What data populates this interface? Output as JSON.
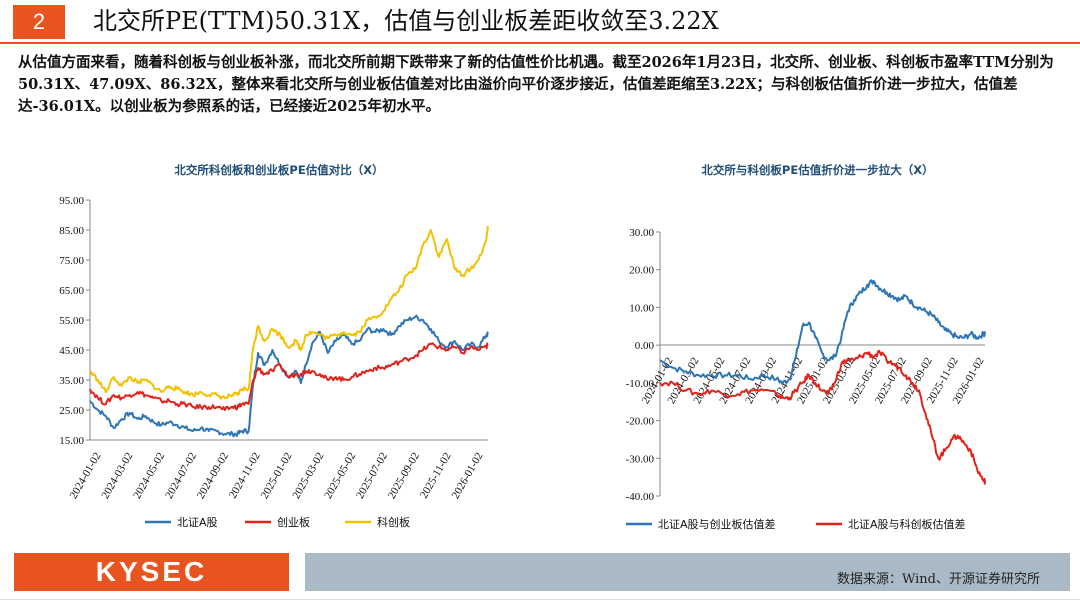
{
  "header": {
    "number": "2",
    "title": "北交所PE(TTM)50.31X，估值与创业板差距收敛至3.22X"
  },
  "summary": "从估值方面来看，随着科创板与创业板补涨，而北交所前期下跌带来了新的估值性价比机遇。截至2026年1月23日，北交所、创业板、科创板市盈率TTM分别为50.31X、47.09X、86.32X，整体来看北交所与创业板估值差对比由溢价向平价逐步接近，估值差距缩至3.22X；与科创板估值折价进一步拉大，估值差达-36.01X。以创业板为参照系的话，已经接近2025年初水平。",
  "footer": {
    "brand": "KYSEC",
    "source": "数据来源：Wind、开源证券研究所"
  },
  "colors": {
    "blue": "#2e75b6",
    "red": "#e0241c",
    "yellow": "#f2c100",
    "accent": "#e8541f"
  },
  "chart_data": [
    {
      "type": "line",
      "title": "北交所科创板和创业板PE估值对比（X）",
      "y_ticks": [
        "95.00",
        "85.00",
        "75.00",
        "65.00",
        "55.00",
        "45.00",
        "35.00",
        "25.00",
        "15.00"
      ],
      "ylim": [
        15,
        95
      ],
      "x_ticks": [
        "2024-01-02",
        "2024-03-02",
        "2024-05-02",
        "2024-07-02",
        "2024-09-02",
        "2024-11-02",
        "2025-01-02",
        "2025-03-02",
        "2025-05-02",
        "2025-07-02",
        "2025-09-02",
        "2025-11-02",
        "2026-01-02"
      ],
      "x_range": [
        0,
        25.1
      ],
      "series": [
        {
          "name": "北证A股",
          "color": "#2e75b6",
          "x": [
            0,
            0.5,
            1,
            1.5,
            2,
            2.5,
            3,
            3.5,
            4,
            4.5,
            5,
            5.5,
            6,
            6.5,
            7,
            7.5,
            8,
            8.5,
            9,
            9.3,
            9.6,
            10,
            10.3,
            10.6,
            11,
            11.5,
            12,
            12.5,
            13,
            13.3,
            13.6,
            14,
            14.5,
            15,
            15.5,
            16,
            16.5,
            17,
            17.5,
            18,
            18.5,
            19,
            19.5,
            20,
            20.5,
            21,
            21.5,
            22,
            22.5,
            23,
            23.5,
            24,
            24.5,
            25,
            25.1
          ],
          "y": [
            28,
            25,
            23,
            19,
            22,
            24,
            22,
            23,
            21,
            20,
            21,
            20,
            19,
            18,
            19,
            18,
            18,
            17,
            17,
            17,
            18,
            18,
            34,
            44,
            40,
            45,
            40,
            36,
            38,
            34,
            40,
            47,
            51,
            44,
            48,
            50,
            47,
            48,
            52,
            51,
            52,
            50,
            53,
            55,
            56,
            55,
            52,
            48,
            46,
            48,
            45,
            47,
            46,
            50,
            50.3
          ]
        },
        {
          "name": "创业板",
          "color": "#e0241c",
          "x": [
            0,
            0.5,
            1,
            1.5,
            2,
            2.5,
            3,
            3.5,
            4,
            4.5,
            5,
            5.5,
            6,
            6.5,
            7,
            7.5,
            8,
            8.5,
            9,
            9.3,
            9.6,
            10,
            10.3,
            10.6,
            11,
            11.5,
            12,
            12.5,
            13,
            13.3,
            13.6,
            14,
            14.5,
            15,
            15.5,
            16,
            16.5,
            17,
            17.5,
            18,
            18.5,
            19,
            19.5,
            20,
            20.5,
            21,
            21.5,
            22,
            22.5,
            23,
            23.5,
            24,
            24.5,
            25,
            25.1
          ],
          "y": [
            32,
            29,
            27,
            30,
            29,
            30,
            31,
            30,
            29,
            28,
            28,
            27,
            27,
            26,
            26,
            26,
            26,
            25,
            26,
            26,
            27,
            27,
            35,
            39,
            37,
            38,
            40,
            36,
            37,
            37,
            38,
            38,
            37,
            35,
            36,
            35,
            36,
            37,
            38,
            39,
            39,
            40,
            41,
            42,
            43,
            45,
            47,
            46,
            45,
            46,
            44,
            46,
            45,
            46,
            47.1
          ]
        },
        {
          "name": "科创板",
          "color": "#f2c100",
          "x": [
            0,
            0.5,
            1,
            1.5,
            2,
            2.5,
            3,
            3.5,
            4,
            4.5,
            5,
            5.5,
            6,
            6.5,
            7,
            7.5,
            8,
            8.5,
            9,
            9.3,
            9.6,
            10,
            10.3,
            10.6,
            11,
            11.5,
            12,
            12.5,
            13,
            13.3,
            13.6,
            14,
            14.5,
            15,
            15.5,
            16,
            16.5,
            17,
            17.5,
            18,
            18.5,
            19,
            19.5,
            20,
            20.5,
            21,
            21.5,
            22,
            22.5,
            23,
            23.5,
            24,
            24.5,
            25,
            25.1
          ],
          "y": [
            38,
            35,
            31,
            36,
            33,
            36,
            34,
            35,
            33,
            31,
            33,
            32,
            31,
            30,
            31,
            30,
            30,
            29,
            30,
            30,
            32,
            32,
            46,
            53,
            48,
            52,
            50,
            46,
            48,
            45,
            50,
            51,
            50,
            49,
            50,
            51,
            50,
            51,
            55,
            56,
            58,
            62,
            65,
            70,
            72,
            80,
            85,
            76,
            82,
            72,
            70,
            72,
            75,
            82,
            86.3
          ]
        }
      ]
    },
    {
      "type": "line",
      "title": "北交所与科创板PE估值折价进一步拉大（X）",
      "y_ticks": [
        "30.00",
        "20.00",
        "10.00",
        "0.00",
        "-10.00",
        "-20.00",
        "-30.00",
        "-40.00"
      ],
      "ylim": [
        -40,
        30
      ],
      "x_ticks": [
        "2024-01-02",
        "2024-03-02",
        "2024-05-02",
        "2024-07-02",
        "2024-09-02",
        "2024-11-02",
        "2025-01-02",
        "2025-03-02",
        "2025-05-02",
        "2025-07-02",
        "2025-09-02",
        "2025-11-02",
        "2026-01-02"
      ],
      "x_range": [
        0,
        25.1
      ],
      "series": [
        {
          "name": "北证A股与创业板估值差",
          "color": "#2e75b6",
          "x": [
            0,
            1,
            2,
            3,
            4,
            5,
            6,
            7,
            8,
            9,
            9.5,
            10,
            10.5,
            11,
            11.5,
            12,
            12.5,
            13,
            13.5,
            14,
            14.5,
            15,
            15.5,
            16,
            16.5,
            17,
            17.5,
            18,
            18.5,
            19,
            19.5,
            20,
            20.5,
            21,
            21.5,
            22,
            22.5,
            23,
            23.5,
            24,
            24.5,
            25,
            25.1
          ],
          "y": [
            -4,
            -6,
            -7,
            -8,
            -8,
            -8,
            -8,
            -9,
            -8,
            -9,
            -10,
            -9,
            -3,
            5,
            6,
            2,
            -2,
            -4,
            -3,
            2,
            9,
            12,
            14,
            16,
            17,
            15,
            14,
            13,
            12,
            13,
            11,
            10,
            9,
            8,
            6,
            4,
            3,
            2,
            2,
            3,
            2,
            3,
            3.2
          ]
        },
        {
          "name": "北证A股与科创板估值差",
          "color": "#e0241c",
          "x": [
            0,
            1,
            2,
            3,
            4,
            5,
            6,
            7,
            8,
            9,
            9.5,
            10,
            10.5,
            11,
            11.5,
            12,
            12.5,
            13,
            13.5,
            14,
            14.5,
            15,
            15.5,
            16,
            16.5,
            17,
            17.5,
            18,
            18.5,
            19,
            19.5,
            20,
            20.5,
            21,
            21.5,
            22,
            22.5,
            23,
            23.5,
            24,
            24.5,
            25,
            25.1
          ],
          "y": [
            -10,
            -10,
            -12,
            -13,
            -12,
            -13,
            -13,
            -12,
            -12,
            -13,
            -14,
            -14,
            -12,
            -10,
            -8,
            -10,
            -12,
            -13,
            -10,
            -5,
            -4,
            -4,
            -3,
            -2,
            -3,
            -2,
            -4,
            -5,
            -6,
            -8,
            -10,
            -12,
            -18,
            -24,
            -30,
            -28,
            -25,
            -24,
            -26,
            -28,
            -33,
            -36,
            -36.0
          ]
        }
      ]
    }
  ]
}
